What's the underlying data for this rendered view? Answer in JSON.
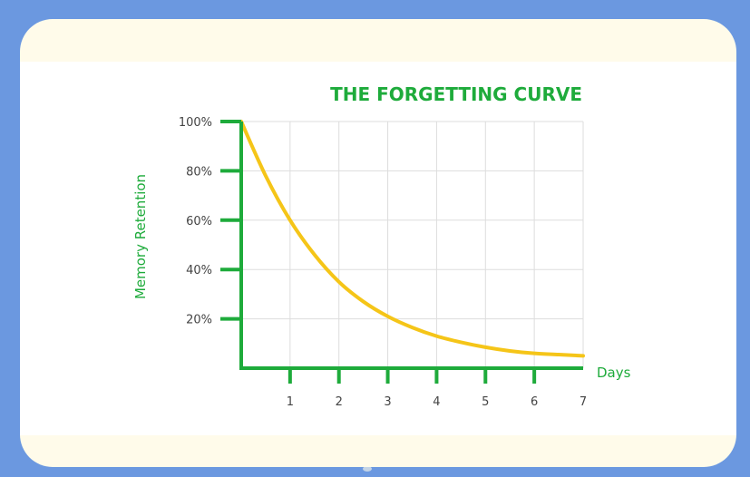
{
  "colors": {
    "background": "#6b98e0",
    "card": "#fffbea",
    "plot_area": "#ffffff",
    "axis": "#1eab3b",
    "grid": "#dddddd",
    "curve": "#f5c518"
  },
  "chart_data": {
    "type": "line",
    "title": "THE FORGETTING CURVE",
    "xlabel": "Days",
    "ylabel": "Memory Retention",
    "x_ticks": [
      "1",
      "2",
      "3",
      "4",
      "5",
      "6",
      "7"
    ],
    "y_ticks": [
      "20%",
      "40%",
      "60%",
      "80%",
      "100%"
    ],
    "xlim": [
      0,
      7
    ],
    "ylim": [
      0,
      100
    ],
    "grid": true,
    "series": [
      {
        "x": [
          0,
          0.5,
          1,
          1.5,
          2,
          2.5,
          3,
          3.5,
          4,
          4.5,
          5,
          5.5,
          6,
          6.5,
          7
        ],
        "values": [
          100,
          78,
          60,
          46,
          35,
          27,
          21,
          16.5,
          13,
          10.5,
          8.5,
          7,
          6,
          5.5,
          5
        ]
      }
    ]
  }
}
